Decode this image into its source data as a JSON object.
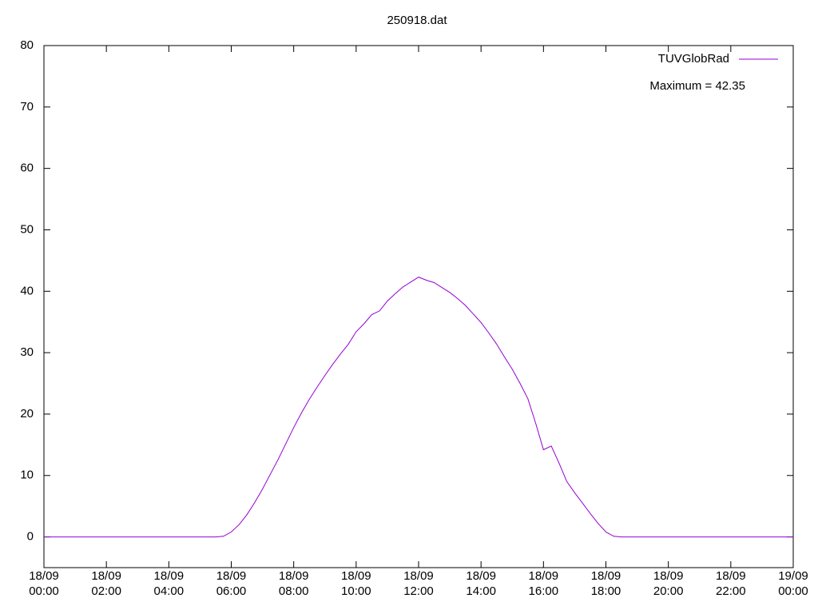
{
  "chart_data": {
    "type": "line",
    "title": "250918.dat",
    "annotations": [
      "Maximum = 42.35"
    ],
    "legend": "top-right",
    "x": [
      "18/09 00:00",
      "18/09 00:15",
      "18/09 00:30",
      "18/09 00:45",
      "18/09 01:00",
      "18/09 01:15",
      "18/09 01:30",
      "18/09 01:45",
      "18/09 02:00",
      "18/09 02:15",
      "18/09 02:30",
      "18/09 02:45",
      "18/09 03:00",
      "18/09 03:15",
      "18/09 03:30",
      "18/09 03:45",
      "18/09 04:00",
      "18/09 04:15",
      "18/09 04:30",
      "18/09 04:45",
      "18/09 05:00",
      "18/09 05:15",
      "18/09 05:30",
      "18/09 05:45",
      "18/09 06:00",
      "18/09 06:15",
      "18/09 06:30",
      "18/09 06:45",
      "18/09 07:00",
      "18/09 07:15",
      "18/09 07:30",
      "18/09 07:45",
      "18/09 08:00",
      "18/09 08:15",
      "18/09 08:30",
      "18/09 08:45",
      "18/09 09:00",
      "18/09 09:15",
      "18/09 09:30",
      "18/09 09:45",
      "18/09 10:00",
      "18/09 10:15",
      "18/09 10:30",
      "18/09 10:45",
      "18/09 11:00",
      "18/09 11:15",
      "18/09 11:30",
      "18/09 11:45",
      "18/09 12:00",
      "18/09 12:15",
      "18/09 12:30",
      "18/09 12:45",
      "18/09 13:00",
      "18/09 13:15",
      "18/09 13:30",
      "18/09 13:45",
      "18/09 14:00",
      "18/09 14:15",
      "18/09 14:30",
      "18/09 14:45",
      "18/09 15:00",
      "18/09 15:15",
      "18/09 15:30",
      "18/09 15:45",
      "18/09 16:00",
      "18/09 16:15",
      "18/09 16:30",
      "18/09 16:45",
      "18/09 17:00",
      "18/09 17:15",
      "18/09 17:30",
      "18/09 17:45",
      "18/09 18:00",
      "18/09 18:15",
      "18/09 18:30",
      "18/09 18:45",
      "18/09 19:00",
      "18/09 19:15",
      "18/09 19:30",
      "18/09 19:45",
      "18/09 20:00",
      "18/09 20:15",
      "18/09 20:30",
      "18/09 20:45",
      "18/09 21:00",
      "18/09 21:15",
      "18/09 21:30",
      "18/09 21:45",
      "18/09 22:00",
      "18/09 22:15",
      "18/09 22:30",
      "18/09 22:45",
      "18/09 23:00",
      "18/09 23:15",
      "18/09 23:30",
      "18/09 23:45",
      "19/09 00:00"
    ],
    "series": [
      {
        "name": "TUVGlobRad",
        "color": "#9400d3",
        "values": [
          0,
          0,
          0,
          0,
          0,
          0,
          0,
          0,
          0,
          0,
          0,
          0,
          0,
          0,
          0,
          0,
          0,
          0,
          0,
          0,
          0,
          0,
          0,
          0.1,
          0.8,
          2,
          3.6,
          5.6,
          7.8,
          10.2,
          12.6,
          15.2,
          17.8,
          20.2,
          22.4,
          24.4,
          26.3,
          28.1,
          29.8,
          31.4,
          33.4,
          34.7,
          36.2,
          36.8,
          38.4,
          39.6,
          40.7,
          41.5,
          42.3,
          41.8,
          41.4,
          40.6,
          39.8,
          38.8,
          37.7,
          36.3,
          34.9,
          33.2,
          31.4,
          29.3,
          27.3,
          25,
          22.5,
          18.5,
          14.2,
          14.8,
          12,
          9,
          7.2,
          5.5,
          3.8,
          2.2,
          0.8,
          0.1,
          0,
          0,
          0,
          0,
          0,
          0,
          0,
          0,
          0,
          0,
          0,
          0,
          0,
          0,
          0,
          0,
          0,
          0,
          0,
          0,
          0,
          0,
          0
        ]
      }
    ],
    "xlim": [
      "18/09 00:00",
      "19/09 00:00"
    ],
    "xticks": [
      "18/09 00:00",
      "18/09 02:00",
      "18/09 04:00",
      "18/09 06:00",
      "18/09 08:00",
      "18/09 10:00",
      "18/09 12:00",
      "18/09 14:00",
      "18/09 16:00",
      "18/09 18:00",
      "18/09 20:00",
      "18/09 22:00",
      "19/09 00:00"
    ],
    "ylim": [
      -5,
      80
    ],
    "yticks": [
      0,
      10,
      20,
      30,
      40,
      50,
      60,
      70,
      80
    ]
  }
}
